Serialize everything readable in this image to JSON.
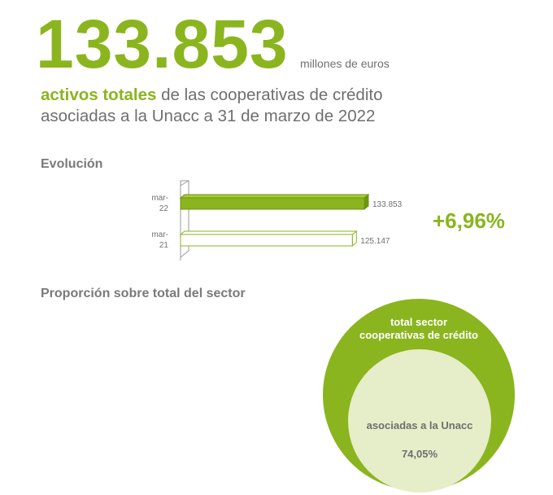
{
  "hero": {
    "value": "133.853",
    "unit": "millones de euros",
    "headline_highlight": "activos totales",
    "headline_rest": " de las cooperativas de crédito asociadas a la Unacc a 31 de marzo de 2022"
  },
  "colors": {
    "accent": "#8ab51e",
    "light_fill": "#e6edc9",
    "text": "#6f6f6f"
  },
  "evolucion": {
    "title": "Evolución",
    "change": "+6,96%"
  },
  "proporcion": {
    "title": "Proporción sobre total del sector",
    "outer_label_line1": "total sector",
    "outer_label_line2": "cooperativas de crédito",
    "inner_label": "asociadas a la Unacc",
    "inner_value": "74,05%"
  },
  "chart_data": [
    {
      "type": "bar",
      "orientation": "horizontal",
      "title": "Evolución",
      "categories": [
        "mar-22",
        "mar-21"
      ],
      "category_label_lines": [
        [
          "mar-",
          "22"
        ],
        [
          "mar-",
          "21"
        ]
      ],
      "values": [
        133853,
        125147
      ],
      "data_labels": [
        "133.853",
        "125.147"
      ],
      "styles": [
        "filled",
        "outline"
      ],
      "xlim": [
        0,
        138000
      ],
      "grid": false
    },
    {
      "type": "pie",
      "title": "Proporción sobre total del sector",
      "style": "nested-circles",
      "categories": [
        "total sector cooperativas de crédito",
        "asociadas a la Unacc"
      ],
      "values": [
        100,
        74.05
      ]
    }
  ]
}
